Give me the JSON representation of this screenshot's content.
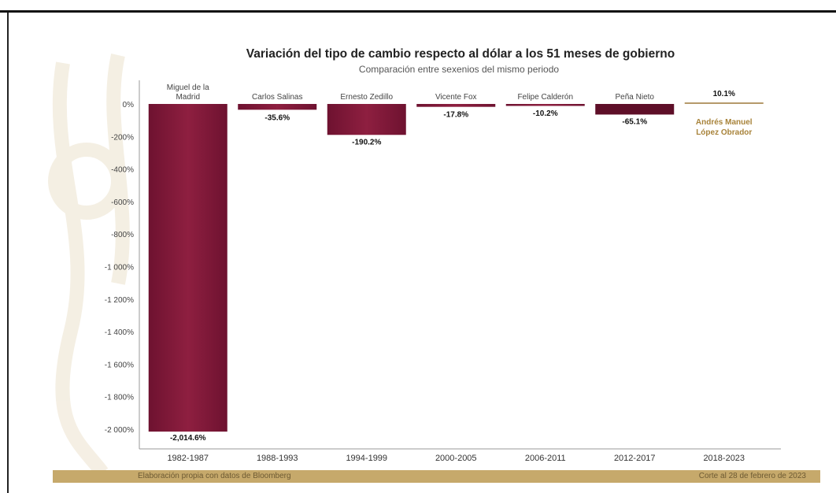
{
  "chart_data": {
    "type": "bar",
    "title": "Variación del tipo de cambio respecto al dólar a los 51 meses de gobierno",
    "subtitle": "Comparación entre sexenios del mismo periodo",
    "categories": [
      "1982-1987",
      "1988-1993",
      "1994-1999",
      "2000-2005",
      "2006-2011",
      "2012-2017",
      "2018-2023"
    ],
    "presidents": [
      [
        "Miguel de la",
        "Madrid"
      ],
      [
        "Carlos Salinas"
      ],
      [
        "Ernesto Zedillo"
      ],
      [
        "Vicente Fox"
      ],
      [
        "Felipe Calderón"
      ],
      [
        "Peña Nieto"
      ],
      [
        "Andrés Manuel",
        "López Obrador"
      ]
    ],
    "values": [
      -2014.6,
      -35.6,
      -190.2,
      -17.8,
      -10.2,
      -65.1,
      10.1
    ],
    "value_labels": [
      "-2,014.6%",
      "-35.6%",
      "-190.2%",
      "-17.8%",
      "-10.2%",
      "-65.1%",
      "10.1%"
    ],
    "yticks": [
      0,
      -200,
      -400,
      -600,
      -800,
      -1000,
      -1200,
      -1400,
      -1600,
      -1800,
      -2000
    ],
    "ytick_labels": [
      "0%",
      "-200%",
      "-400%",
      "-600%",
      "-800%",
      "-1 000%",
      "-1 200%",
      "-1 400%",
      "-1 600%",
      "-1 800%",
      "-2 000%"
    ],
    "ylim": [
      -2000,
      0
    ],
    "xlabel": "",
    "ylabel": "",
    "colors": {
      "bar": "#8a1c3c",
      "bar_dark": "#5e0f28",
      "amlo": "#b59a6a",
      "amlo_label": "#a8833a"
    }
  },
  "footer": {
    "source": "Elaboración propia con datos de Bloomberg",
    "cutoff": "Corte al 28 de febrero de 2023"
  }
}
